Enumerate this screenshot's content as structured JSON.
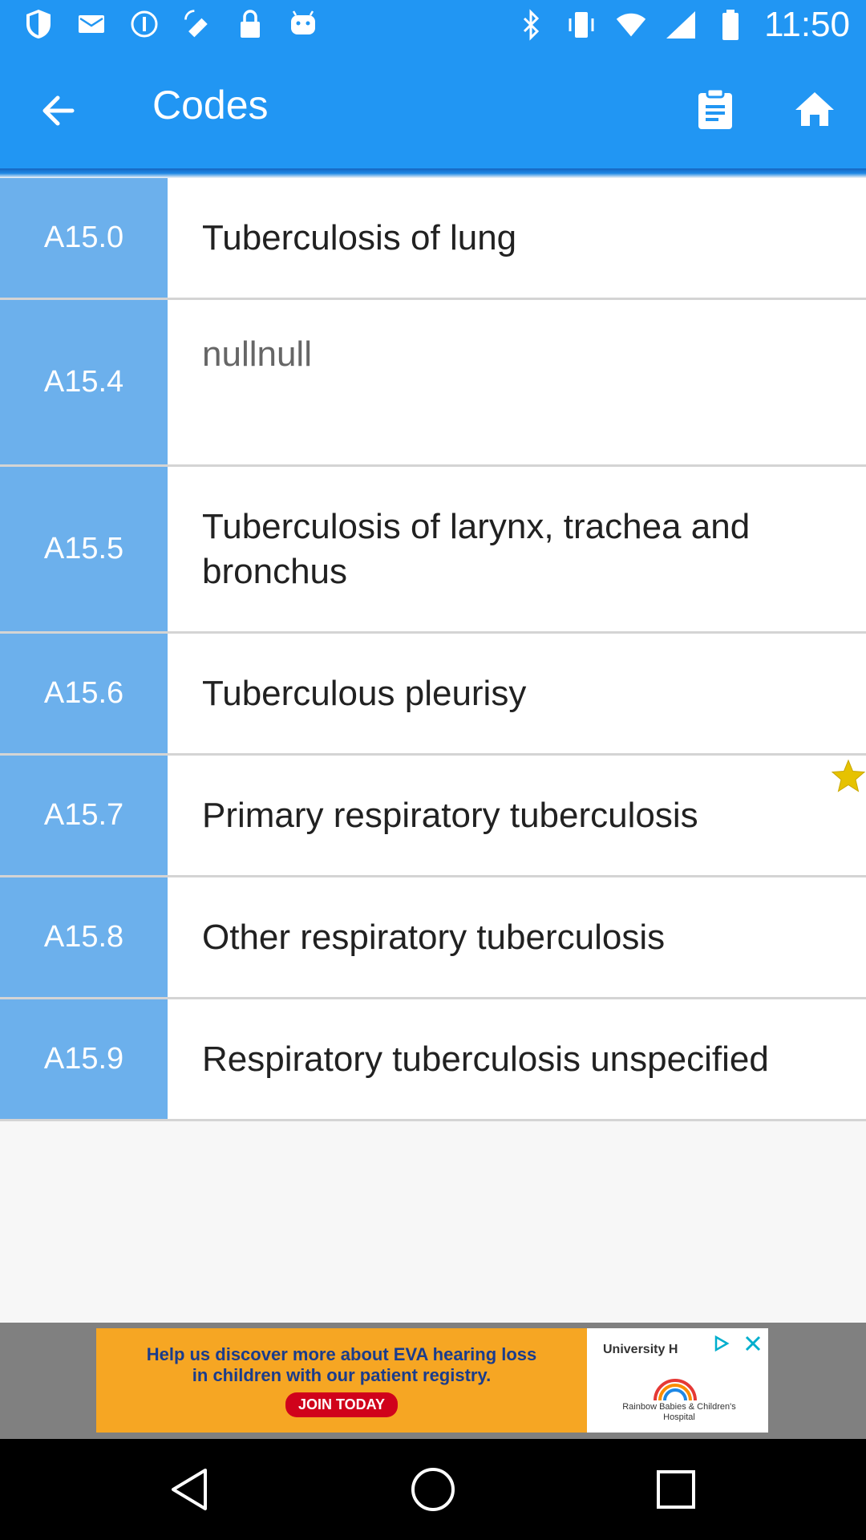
{
  "status_bar": {
    "time": "11:50",
    "left_icons": [
      "shield-icon",
      "mail-icon",
      "info-icon",
      "fake-gps-icon",
      "lock-icon",
      "android-icon"
    ],
    "right_icons": [
      "bluetooth-icon",
      "vibrate-icon",
      "wifi-icon",
      "signal-icon",
      "battery-icon"
    ]
  },
  "app_bar": {
    "title": "Codes",
    "actions": [
      "clipboard-icon",
      "home-icon"
    ]
  },
  "colors": {
    "primary": "#2196f3",
    "code_cell": "#6cb0ec",
    "star": "#e6c200"
  },
  "codes": [
    {
      "code": "A15.0",
      "description": "Tuberculosis of lung"
    },
    {
      "code": "A15.4",
      "description": "nullnull"
    },
    {
      "code": "A15.5",
      "description": "Tuberculosis of larynx, trachea and bronchus"
    },
    {
      "code": "A15.6",
      "description": "Tuberculous pleurisy"
    },
    {
      "code": "A15.7",
      "description": "Primary respiratory tuberculosis"
    },
    {
      "code": "A15.8",
      "description": "Other respiratory tuberculosis"
    },
    {
      "code": "A15.9",
      "description": "Respiratory tuberculosis unspecified"
    }
  ],
  "ad": {
    "line1": "Help us discover more about EVA hearing loss",
    "line2": "in children with our patient registry.",
    "cta": "JOIN TODAY",
    "brand": "University H",
    "hospital": "Rainbow Babies & Children's Hospital"
  }
}
